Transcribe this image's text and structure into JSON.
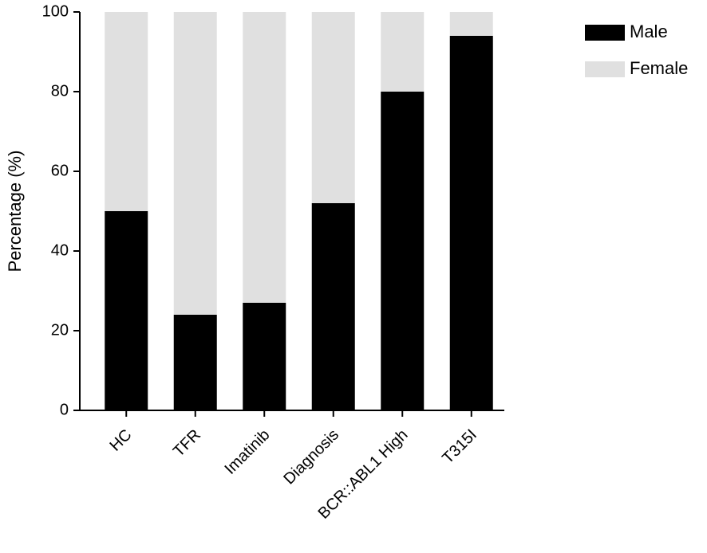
{
  "chart_data": {
    "type": "stacked-bar",
    "y_label": "Percentage (%)",
    "categories": [
      "HC",
      "TFR",
      "Imatinib",
      "Diagnosis",
      "BCR::ABL1 High",
      "T315I"
    ],
    "series": [
      {
        "name": "Male",
        "color": "#000000",
        "values": [
          50,
          24,
          27,
          52,
          80,
          94
        ]
      },
      {
        "name": "Female",
        "color": "#e0e0e0",
        "values": [
          50,
          76,
          73,
          48,
          20,
          6
        ]
      }
    ],
    "ylim": [
      0,
      100
    ],
    "yticks": [
      0,
      20,
      40,
      60,
      80,
      100
    ],
    "legend": "top-right"
  }
}
